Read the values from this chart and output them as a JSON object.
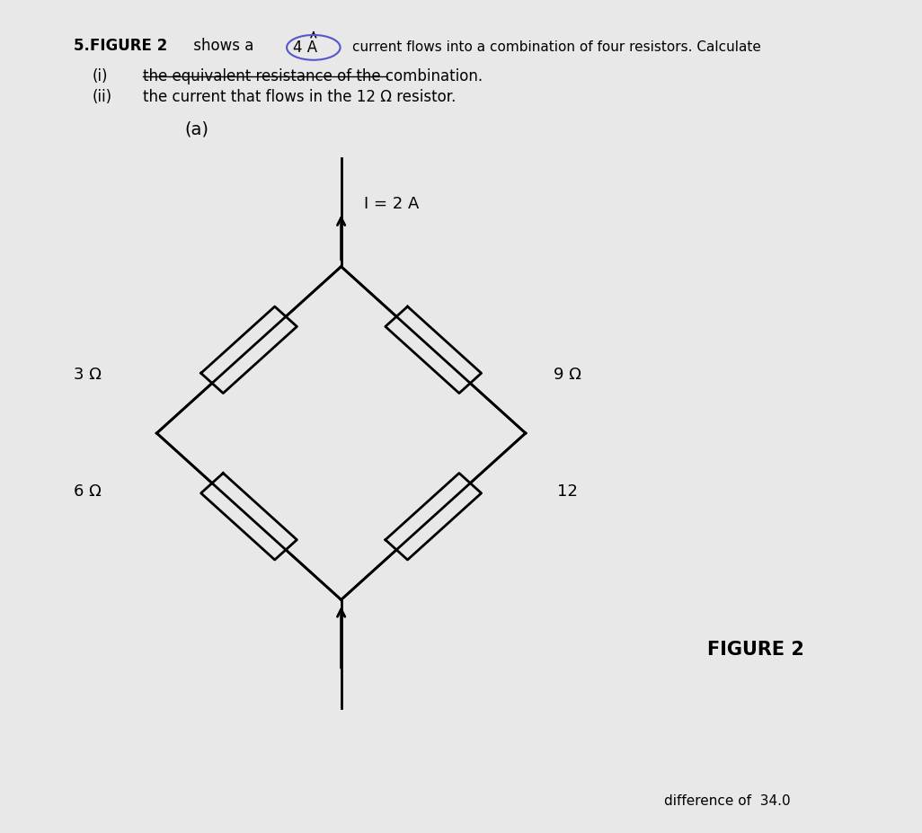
{
  "background_color": "#e8e8e8",
  "item_i": "the equivalent resistance of the combination.",
  "item_ii": "the current that flows in the 12 Ω resistor.",
  "label_a": "(a)",
  "current_label": "I = 2 A",
  "resistor_labels": [
    "3 Ω",
    "6 Ω",
    "9 Ω",
    "12"
  ],
  "figure_label": "FIGURE 2",
  "footer_text": "difference of  34.0",
  "circle_color": "#5555cc"
}
